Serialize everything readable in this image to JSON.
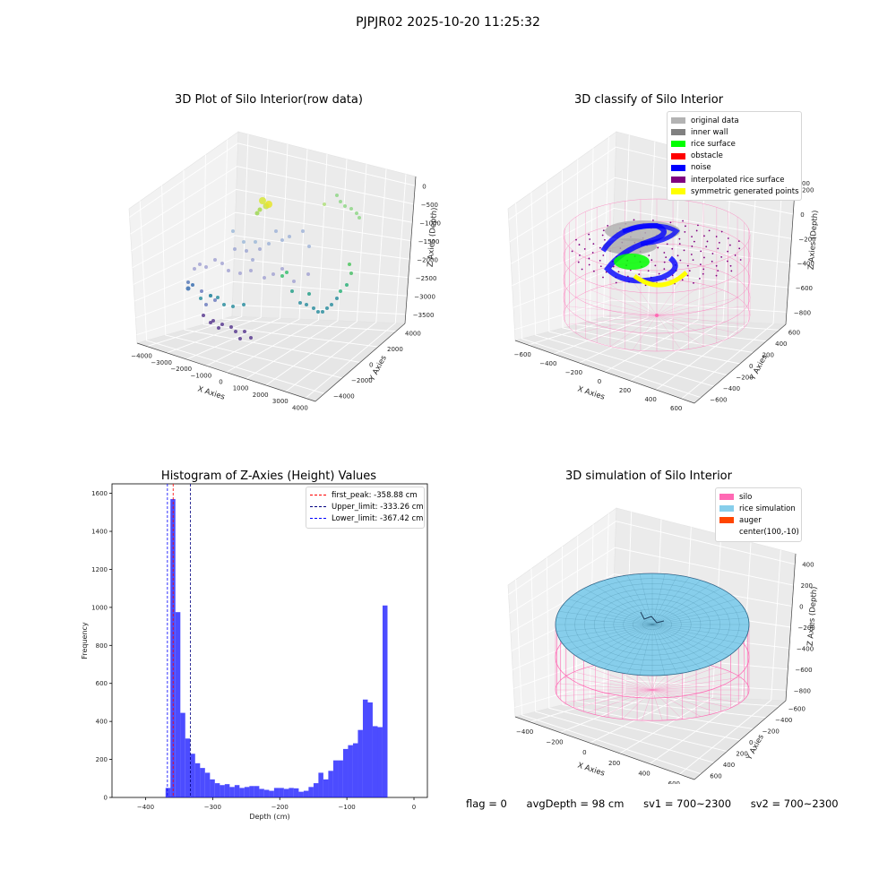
{
  "suptitle": "PJPJR02 2025-10-20 11:25:32",
  "panels": {
    "raw": {
      "title": "3D Plot of Silo Interior(row data)",
      "xlabel": "X Axies",
      "ylabel": "Y Axies",
      "zlabel": "Z Axies (Depth)",
      "xticks": [
        "−4000",
        "−3000",
        "−2000",
        "−1000",
        "0",
        "1000",
        "2000",
        "3000",
        "4000"
      ],
      "yticks": [
        "−4000",
        "−2000",
        "0",
        "2000",
        "4000"
      ],
      "zticks": [
        "0",
        "−500",
        "−1000",
        "−1500",
        "−2000",
        "−2500",
        "−3000",
        "−3500"
      ]
    },
    "classify": {
      "title": "3D classify of Silo Interior",
      "xlabel": "X Axies",
      "ylabel": "Y Axies",
      "zlabel": "Z Axies (Depth)",
      "xticks": [
        "−600",
        "−400",
        "−200",
        "0",
        "200",
        "400",
        "600"
      ],
      "yticks": [
        "−600",
        "−400",
        "−200",
        "0",
        "200",
        "400",
        "600"
      ],
      "zticks": [
        "200",
        "0",
        "−200",
        "−400",
        "−600",
        "−800"
      ],
      "legend": [
        {
          "label": "original data",
          "color": "#b3b3b3"
        },
        {
          "label": "inner wall",
          "color": "#808080"
        },
        {
          "label": "rice surface",
          "color": "#00ff00"
        },
        {
          "label": "obstacle",
          "color": "#ff0000"
        },
        {
          "label": "noise",
          "color": "#0000ff"
        },
        {
          "label": "interpolated rice surface",
          "color": "#800080"
        },
        {
          "label": "symmetric generated points",
          "color": "#ffff00"
        }
      ],
      "partial_tick": "00"
    },
    "histogram": {
      "title": "Histogram of Z-Axies (Height) Values",
      "legend": [
        {
          "label": "first_peak: -358.88 cm",
          "color": "#ff0000"
        },
        {
          "label": "Upper_limit: -333.26 cm",
          "color": "#000080"
        },
        {
          "label": "Lower_limit: -367.42 cm",
          "color": "#0000ff"
        }
      ]
    },
    "simulation": {
      "title": "3D simulation of Silo Interior",
      "xlabel": "X Axies",
      "ylabel": "Y Axies",
      "zlabel": "Z Axies (Depth)",
      "xticks": [
        "−400",
        "−200",
        "0",
        "200",
        "400",
        "600"
      ],
      "yticks": [
        "600",
        "400",
        "200",
        "0",
        "−200",
        "−400",
        "−600"
      ],
      "zticks": [
        "400",
        "200",
        "0",
        "−200",
        "−400",
        "−600",
        "−800"
      ],
      "legend": [
        {
          "label": "silo",
          "color": "#ff69b4"
        },
        {
          "label": "rice simulation",
          "color": "#87ceeb"
        },
        {
          "label": "auger",
          "color": "#ff4500"
        },
        {
          "label": "center(100,-10)",
          "color": ""
        }
      ]
    }
  },
  "footer": {
    "flag": "flag = 0",
    "avg": "avgDepth = 98 cm",
    "sv1": "sv1 = 700~2300",
    "sv2": "sv2 = 700~2300"
  },
  "chart_data": {
    "type": "bar",
    "title": "Histogram of Z-Axies (Height) Values",
    "xlabel": "Depth (cm)",
    "ylabel": "Frequency",
    "xlim": [
      -450,
      20
    ],
    "ylim": [
      0,
      1650
    ],
    "xticks": [
      -400,
      -300,
      -200,
      -100,
      0
    ],
    "yticks": [
      0,
      200,
      400,
      600,
      800,
      1000,
      1200,
      1400,
      1600
    ],
    "bin_width": 7.35,
    "x": [
      -366.5,
      -359.2,
      -351.8,
      -344.5,
      -337.1,
      -329.8,
      -322.4,
      -315.1,
      -307.7,
      -300.4,
      -293.0,
      -285.7,
      -278.3,
      -271.0,
      -263.6,
      -256.3,
      -248.9,
      -241.6,
      -234.2,
      -226.9,
      -219.5,
      -212.2,
      -204.8,
      -197.5,
      -190.1,
      -182.8,
      -175.4,
      -168.1,
      -160.7,
      -153.4,
      -146.0,
      -138.7,
      -131.3,
      -124.0,
      -116.6,
      -109.3,
      -101.9,
      -94.6,
      -87.2,
      -79.9,
      -72.5,
      -65.2,
      -57.8,
      -50.5,
      -43.1,
      -35.8,
      -28.4,
      -21.1,
      -13.7,
      -6.4,
      -0.4
    ],
    "values": [
      50,
      1570,
      975,
      445,
      310,
      230,
      180,
      155,
      130,
      95,
      75,
      65,
      70,
      55,
      65,
      50,
      55,
      60,
      60,
      45,
      40,
      35,
      50,
      50,
      45,
      50,
      48,
      30,
      35,
      55,
      75,
      130,
      95,
      140,
      195,
      195,
      255,
      275,
      285,
      355,
      515,
      500,
      375,
      370,
      1010,
      0,
      0,
      0,
      0,
      0,
      0
    ],
    "lines": [
      {
        "name": "first_peak",
        "x": -358.88,
        "color": "#ff0000"
      },
      {
        "name": "Upper_limit",
        "x": -333.26,
        "color": "#000080"
      },
      {
        "name": "Lower_limit",
        "x": -367.42,
        "color": "#0000ff"
      }
    ],
    "bar_color": "#0000ff"
  }
}
